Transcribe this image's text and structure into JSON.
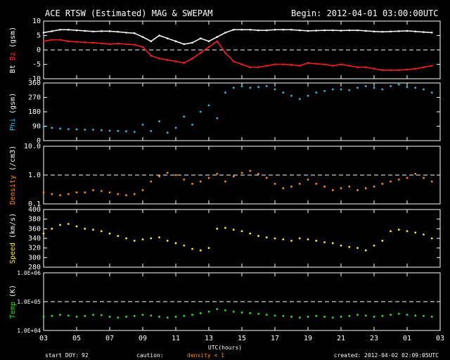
{
  "header": {
    "title": "ACE RTSW (Estimated) MAG & SWEPAM",
    "begin": "Begin: 2012-04-01 03:00:00UTC"
  },
  "footer": {
    "start_doy_label": "start DOY:",
    "start_doy": "92",
    "caution_label": "caution:",
    "caution_text": "density < 1",
    "created": "created: 2012-04-02 02:09:05UTC",
    "xlabel": "UTC(hours)"
  },
  "colors": {
    "background": "#000000",
    "axes": "#ffffff",
    "bt": "#ffffff",
    "bz": "#ff2020",
    "phi": "#33b8e6",
    "density": "#ff8c1a",
    "speed": "#ffee33",
    "temp": "#33dd33"
  },
  "chart_data": {
    "type": "scatter",
    "x_ticks": [
      "03",
      "05",
      "07",
      "09",
      "11",
      "13",
      "15",
      "17",
      "19",
      "21",
      "23",
      "01",
      "03"
    ],
    "xlim": [
      0,
      24
    ],
    "panels": [
      {
        "id": "mag",
        "ylabel_parts": [
          {
            "text": "Bt",
            "color": "#ffffff"
          },
          {
            "text": "Bz",
            "color": "#ff2020"
          },
          {
            "text": "(gsm)",
            "color": "#ffffff"
          }
        ],
        "ylim": [
          -10,
          10
        ],
        "scale": "linear",
        "yticks": [
          "-10",
          "-5",
          "0",
          "5",
          "10"
        ],
        "ytick_values": [
          -10,
          -5,
          0,
          5,
          10
        ],
        "ref_line": 0,
        "series": [
          {
            "key": "bt",
            "color": "#ffffff",
            "style": "line",
            "x": [
              0,
              0.5,
              1,
              1.5,
              2,
              2.5,
              3,
              3.5,
              4,
              4.5,
              5,
              5.5,
              6,
              6.5,
              7,
              7.5,
              8,
              8.5,
              9,
              9.5,
              10,
              10.5,
              11,
              11.5,
              12,
              12.5,
              13,
              13.5,
              14,
              14.5,
              15,
              15.5,
              16,
              16.5,
              17,
              17.5,
              18,
              18.5,
              19,
              19.5,
              20,
              20.5,
              21,
              21.5,
              22,
              22.5,
              23,
              23.5
            ],
            "y": [
              6,
              6.5,
              7,
              7,
              6.8,
              6.6,
              6.4,
              6.5,
              6.5,
              6.3,
              6,
              5.8,
              4.5,
              3,
              5,
              4,
              3,
              2,
              2.5,
              4,
              3,
              4.5,
              6,
              7,
              7,
              7,
              6.8,
              6.8,
              7,
              7,
              7,
              6.8,
              6.6,
              6.7,
              6.8,
              6.8,
              6.7,
              6.8,
              6.8,
              6.6,
              6.4,
              6.3,
              6.4,
              6.5,
              6.6,
              6.4,
              6.2,
              6.0
            ]
          },
          {
            "key": "bz",
            "color": "#ff2020",
            "style": "line",
            "x": [
              0,
              0.5,
              1,
              1.5,
              2,
              2.5,
              3,
              3.5,
              4,
              4.5,
              5,
              5.5,
              6,
              6.5,
              7,
              7.5,
              8,
              8.5,
              9,
              9.5,
              10,
              10.5,
              11,
              11.5,
              12,
              12.5,
              13,
              13.5,
              14,
              14.5,
              15,
              15.5,
              16,
              16.5,
              17,
              17.5,
              18,
              18.5,
              19,
              19.5,
              20,
              20.5,
              21,
              21.5,
              22,
              22.5,
              23,
              23.5
            ],
            "y": [
              3,
              3.5,
              3.5,
              3,
              2.8,
              2.6,
              2.5,
              2.3,
              2,
              2.2,
              2,
              1.8,
              1,
              -2,
              -3,
              -3.5,
              -4,
              -4.5,
              -3,
              -1,
              1,
              3,
              -1,
              -4,
              -5,
              -6,
              -6,
              -5.5,
              -5,
              -5,
              -5.2,
              -5.5,
              -4.5,
              -4.8,
              -5,
              -5.5,
              -5,
              -5.5,
              -6,
              -6,
              -6.5,
              -7,
              -7,
              -7,
              -6.8,
              -6.5,
              -6,
              -5.5
            ]
          }
        ]
      },
      {
        "id": "phi",
        "ylabel_parts": [
          {
            "text": "Phi",
            "color": "#33b8e6"
          },
          {
            "text": "(gsm)",
            "color": "#ffffff"
          }
        ],
        "ylim": [
          0,
          360
        ],
        "scale": "linear",
        "yticks": [
          "0",
          "90",
          "180",
          "270",
          "360"
        ],
        "ytick_values": [
          0,
          90,
          180,
          270,
          360
        ],
        "series": [
          {
            "key": "phi",
            "color": "#33b8e6",
            "style": "dots",
            "x": [
              0,
              0.5,
              1,
              1.5,
              2,
              2.5,
              3,
              3.5,
              4,
              4.5,
              5,
              5.5,
              6,
              6.5,
              7,
              7.5,
              8,
              8.5,
              9,
              9.5,
              10,
              10.5,
              11,
              11.5,
              12,
              12.5,
              13,
              13.5,
              14,
              14.5,
              15,
              15.5,
              16,
              16.5,
              17,
              17.5,
              18,
              18.5,
              19,
              19.5,
              20,
              20.5,
              21,
              21.5,
              22,
              22.5,
              23,
              23.5
            ],
            "y": [
              85,
              80,
              75,
              72,
              70,
              68,
              68,
              65,
              62,
              60,
              58,
              55,
              100,
              60,
              120,
              50,
              80,
              150,
              100,
              180,
              220,
              140,
              300,
              330,
              340,
              330,
              335,
              340,
              320,
              300,
              280,
              260,
              280,
              300,
              310,
              320,
              320,
              315,
              330,
              340,
              330,
              320,
              340,
              350,
              335,
              330,
              320,
              300
            ]
          }
        ]
      },
      {
        "id": "density",
        "ylabel_parts": [
          {
            "text": "Density",
            "color": "#ff8c1a"
          },
          {
            "text": "(/cm3)",
            "color": "#ffffff"
          }
        ],
        "ylim": [
          0.1,
          10
        ],
        "scale": "log",
        "yticks": [
          "0.1",
          "1.0",
          "10.0"
        ],
        "ytick_values": [
          0.1,
          1,
          10
        ],
        "ref_line": 1,
        "series": [
          {
            "key": "density",
            "color": "#ff8c1a",
            "style": "dots",
            "x": [
              0,
              0.5,
              1,
              1.5,
              2,
              2.5,
              3,
              3.5,
              4,
              4.5,
              5,
              5.5,
              6,
              6.5,
              7,
              7.5,
              8,
              8.5,
              9,
              9.5,
              10,
              10.5,
              11,
              11.5,
              12,
              12.5,
              13,
              13.5,
              14,
              14.5,
              15,
              15.5,
              16,
              16.5,
              17,
              17.5,
              18,
              18.5,
              19,
              19.5,
              20,
              20.5,
              21,
              21.5,
              22,
              22.5,
              23,
              23.5
            ],
            "y": [
              0.25,
              0.22,
              0.2,
              0.22,
              0.25,
              0.25,
              0.3,
              0.28,
              0.25,
              0.22,
              0.2,
              0.22,
              0.3,
              0.6,
              0.9,
              1.2,
              1.0,
              0.7,
              0.5,
              0.6,
              0.8,
              1.1,
              0.6,
              0.9,
              1.2,
              1.4,
              1.1,
              0.8,
              0.5,
              0.35,
              0.4,
              0.5,
              0.7,
              0.5,
              0.4,
              0.3,
              0.35,
              0.4,
              0.3,
              0.35,
              0.4,
              0.5,
              0.6,
              0.7,
              0.8,
              1.1,
              0.8,
              0.6
            ]
          }
        ]
      },
      {
        "id": "speed",
        "ylabel_parts": [
          {
            "text": "Speed",
            "color": "#ffee33"
          },
          {
            "text": "(km/s)",
            "color": "#ffffff"
          }
        ],
        "ylim": [
          280,
          400
        ],
        "scale": "linear",
        "yticks": [
          "280",
          "300",
          "320",
          "340",
          "360",
          "380",
          "400"
        ],
        "ytick_values": [
          280,
          300,
          320,
          340,
          360,
          380,
          400
        ],
        "series": [
          {
            "key": "speed",
            "color": "#ffee33",
            "style": "dots",
            "x": [
              0,
              0.5,
              1,
              1.5,
              2,
              2.5,
              3,
              3.5,
              4,
              4.5,
              5,
              5.5,
              6,
              6.5,
              7,
              7.5,
              8,
              8.5,
              9,
              9.5,
              10,
              10.5,
              11,
              11.5,
              12,
              12.5,
              13,
              13.5,
              14,
              14.5,
              15,
              15.5,
              16,
              16.5,
              17,
              17.5,
              18,
              18.5,
              19,
              19.5,
              20,
              20.5,
              21,
              21.5,
              22,
              22.5,
              23,
              23.5
            ],
            "y": [
              350,
              360,
              368,
              370,
              365,
              360,
              358,
              355,
              350,
              345,
              340,
              335,
              338,
              340,
              342,
              335,
              330,
              325,
              318,
              315,
              320,
              360,
              362,
              358,
              355,
              350,
              345,
              342,
              340,
              338,
              335,
              340,
              338,
              335,
              332,
              330,
              325,
              322,
              320,
              315,
              325,
              335,
              355,
              358,
              355,
              352,
              348,
              340
            ]
          }
        ]
      },
      {
        "id": "temp",
        "ylabel_parts": [
          {
            "text": "Temp",
            "color": "#33dd33"
          },
          {
            "text": "(K)",
            "color": "#ffffff"
          }
        ],
        "ylim": [
          10000,
          1000000
        ],
        "scale": "log",
        "yticks": [
          "1.0E+04",
          "1.0E+05",
          "1.0E+06"
        ],
        "ytick_values": [
          10000,
          100000,
          1000000
        ],
        "ref_line": 100000,
        "series": [
          {
            "key": "temp",
            "color": "#33dd33",
            "style": "dots",
            "x": [
              0,
              0.5,
              1,
              1.5,
              2,
              2.5,
              3,
              3.5,
              4,
              4.5,
              5,
              5.5,
              6,
              6.5,
              7,
              7.5,
              8,
              8.5,
              9,
              9.5,
              10,
              10.5,
              11,
              11.5,
              12,
              12.5,
              13,
              13.5,
              14,
              14.5,
              15,
              15.5,
              16,
              16.5,
              17,
              17.5,
              18,
              18.5,
              19,
              19.5,
              20,
              20.5,
              21,
              21.5,
              22,
              22.5,
              23,
              23.5
            ],
            "y": [
              30000,
              32000,
              35000,
              33000,
              30000,
              32000,
              35000,
              34000,
              30000,
              28000,
              30000,
              32000,
              35000,
              33000,
              30000,
              28000,
              30000,
              32000,
              35000,
              40000,
              45000,
              55000,
              50000,
              45000,
              42000,
              40000,
              38000,
              35000,
              33000,
              32000,
              30000,
              28000,
              30000,
              32000,
              30000,
              28000,
              30000,
              32000,
              35000,
              33000,
              30000,
              32000,
              35000,
              38000,
              35000,
              33000,
              32000,
              30000
            ]
          }
        ]
      }
    ]
  }
}
